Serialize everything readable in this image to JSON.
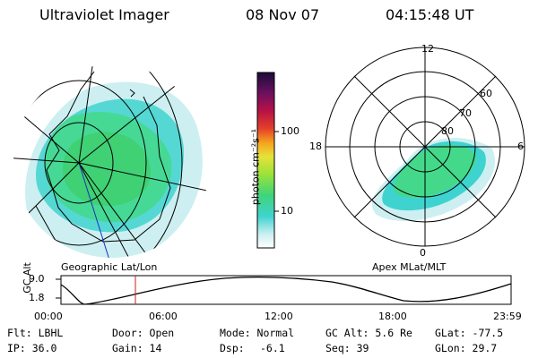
{
  "header": {
    "title": "Ultraviolet Imager",
    "date": "08 Nov 07",
    "time": "04:15:48 UT"
  },
  "geo_panel": {
    "label": "Geographic Lat/Lon"
  },
  "polar_panel": {
    "label": "Apex MLat/MLT",
    "mlt_labels": [
      "12",
      "18",
      "6",
      "0"
    ],
    "lat_labels": [
      "60",
      "70",
      "80"
    ]
  },
  "colorbar": {
    "unit_label": "photon cm⁻²s⁻¹",
    "ticks": [
      "100",
      "10"
    ]
  },
  "altitude_plot": {
    "ylabel": "GC Alt",
    "ymax_label": "9.0",
    "ymin_label": "1.8",
    "xticks": [
      "00:00",
      "06:00",
      "12:00",
      "18:00",
      "23:59"
    ]
  },
  "footer": {
    "row1": {
      "flt": "Flt: LBHL",
      "door": "Door: Open",
      "mode": "Mode: Normal",
      "gcalt": "GC Alt: 5.6 Re",
      "glat": "GLat: -77.5"
    },
    "row2": {
      "ip": "IP: 36.0",
      "gain": "Gain: 14",
      "dsp_label": "Dsp:",
      "dsp_value": "-6.1",
      "seq": "Seq: 39",
      "glon": "GLon:  29.7"
    }
  },
  "colors": {
    "aurora_green": "#3dd47a",
    "aurora_cyan": "#3fd3d0",
    "haze": "#cfeff0",
    "marker_red": "#c02020"
  }
}
